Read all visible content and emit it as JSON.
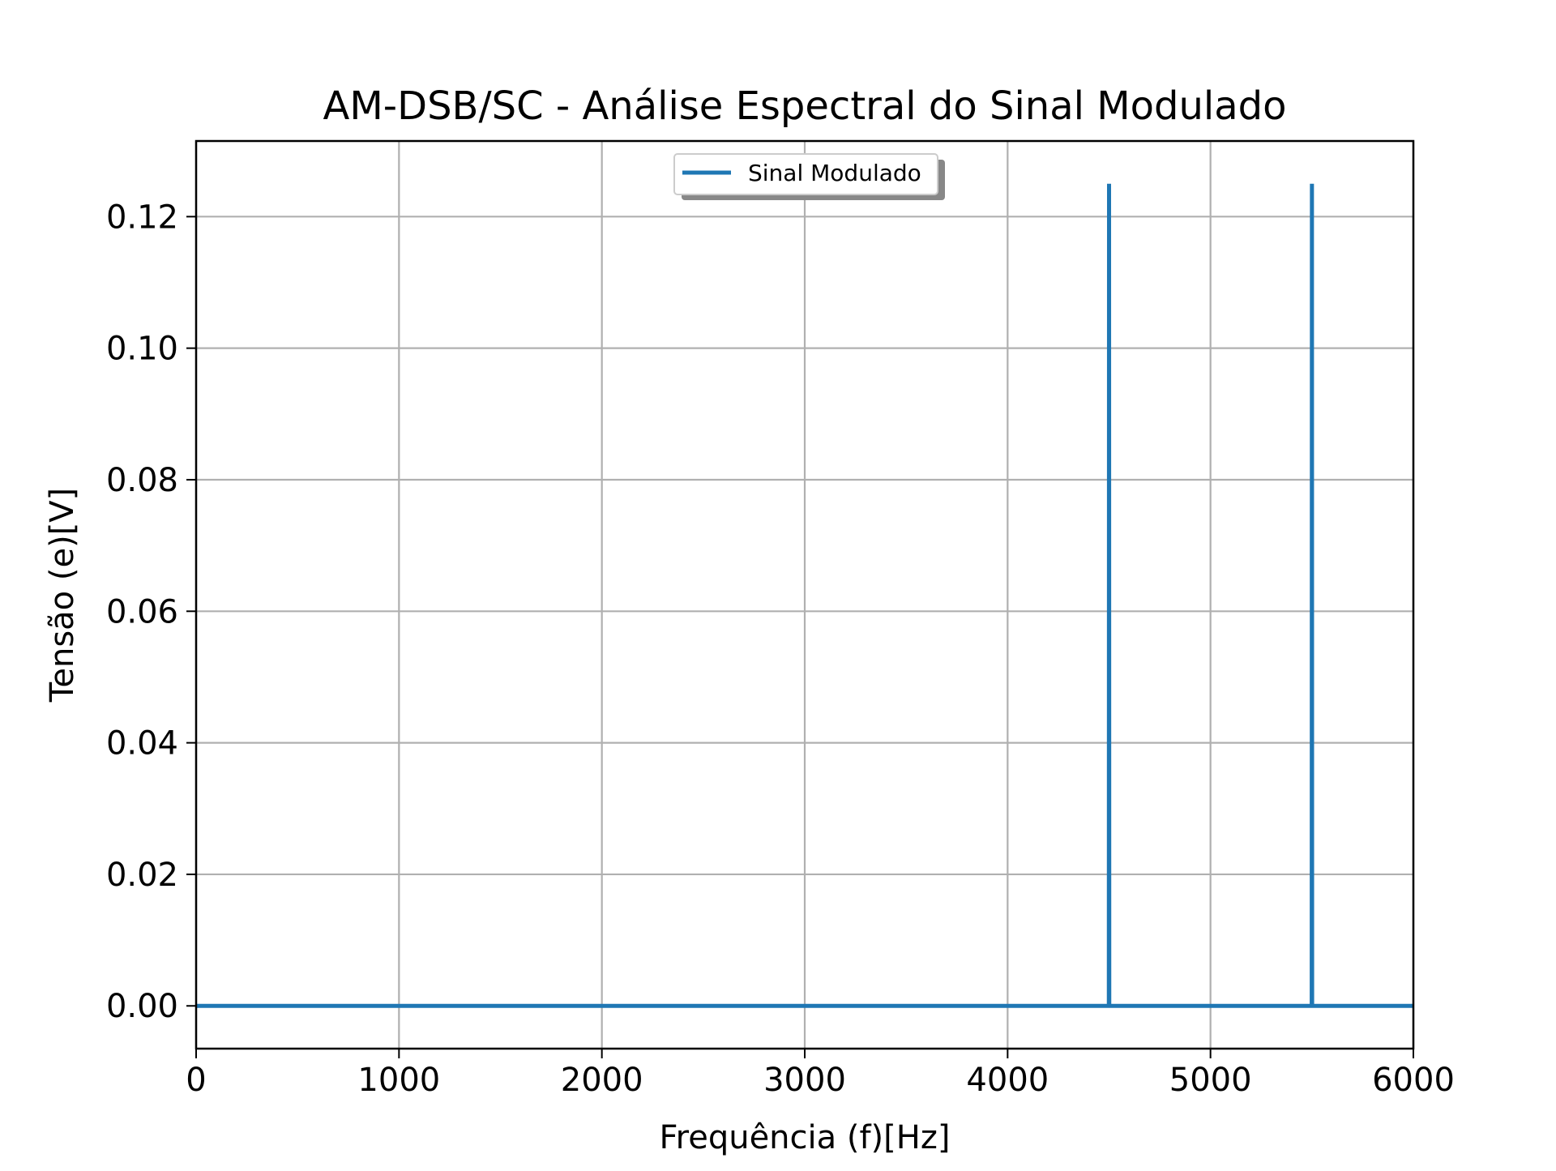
{
  "chart_data": {
    "type": "line",
    "title": "AM-DSB/SC - Análise Espectral do Sinal Modulado",
    "xlabel": "Frequência (f)[Hz]",
    "ylabel": "Tensão (e)[V]",
    "xlim": [
      0,
      6000
    ],
    "ylim": [
      -0.0065,
      0.1315
    ],
    "xticks": [
      0,
      1000,
      2000,
      3000,
      4000,
      5000,
      6000
    ],
    "xtick_labels": [
      "0",
      "1000",
      "2000",
      "3000",
      "4000",
      "5000",
      "6000"
    ],
    "yticks": [
      0.0,
      0.02,
      0.04,
      0.06,
      0.08,
      0.1,
      0.12
    ],
    "ytick_labels": [
      "0.00",
      "0.02",
      "0.04",
      "0.06",
      "0.08",
      "0.10",
      "0.12"
    ],
    "grid": true,
    "legend_position": "upper-center",
    "series": [
      {
        "name": "Sinal Modulado",
        "color": "#1f77b4",
        "x": [
          0,
          4499,
          4500,
          4501,
          5499,
          5500,
          5501,
          6000
        ],
        "y": [
          0,
          0,
          0.125,
          0,
          0,
          0.125,
          0,
          0
        ]
      }
    ]
  }
}
